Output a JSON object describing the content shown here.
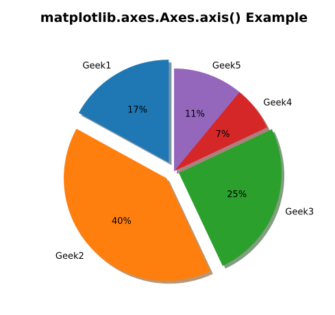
{
  "chart_data": {
    "type": "pie",
    "title": "matplotlib.axes.Axes.axis() Example",
    "start_angle_deg": 90,
    "direction": "counterclockwise",
    "shadow": true,
    "categories": [
      "Geek1",
      "Geek2",
      "Geek3",
      "Geek4",
      "Geek5"
    ],
    "values": [
      17,
      40,
      25,
      7,
      11
    ],
    "percent_labels": [
      "17%",
      "40%",
      "25%",
      "7%",
      "11%"
    ],
    "explode": [
      0.1,
      0.1,
      0.05,
      0,
      0
    ],
    "colors": [
      "#1f77b4",
      "#ff7f0e",
      "#2ca02c",
      "#d62728",
      "#9467bd"
    ]
  }
}
